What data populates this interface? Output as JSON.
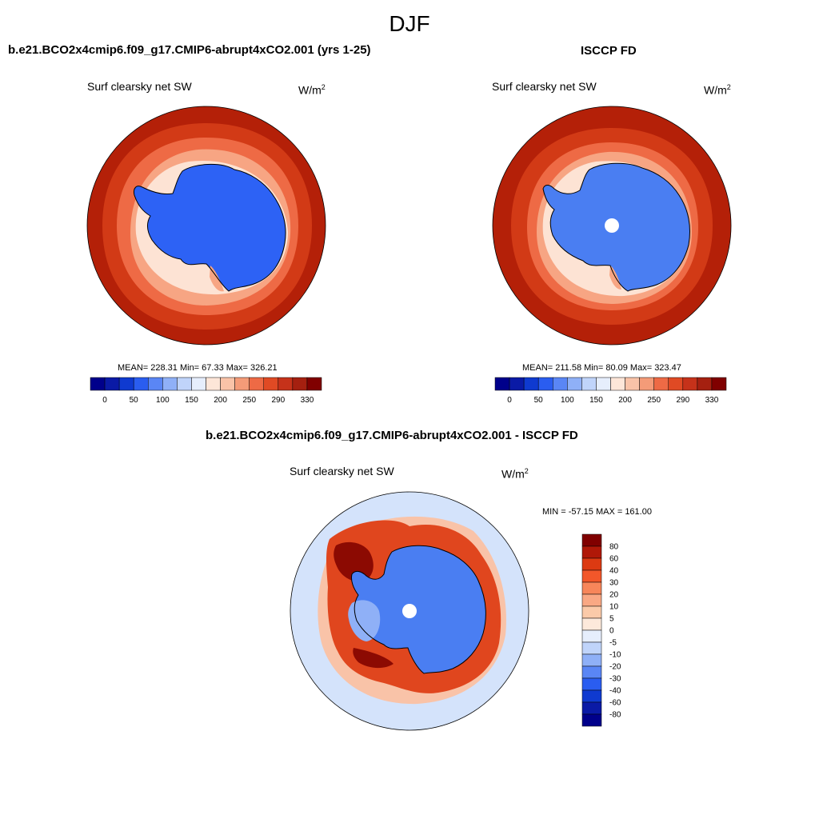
{
  "figure": {
    "season": "DJF"
  },
  "panels": [
    {
      "title": "b.e21.BCO2x4cmip6.f09_g17.CMIP6-abrupt4xCO2.001 (yrs 1-25)",
      "variable": "Surf clearsky net SW",
      "units": "W/m",
      "units_exp": "2",
      "stats": "MEAN= 228.31  Min=  67.33  Max= 326.21"
    },
    {
      "title": "ISCCP FD",
      "variable": "Surf clearsky net SW",
      "units": "W/m",
      "units_exp": "2",
      "stats": "MEAN= 211.58  Min=  80.09  Max= 323.47"
    },
    {
      "title": "b.e21.BCO2x4cmip6.f09_g17.CMIP6-abrupt4xCO2.001 - ISCCP FD",
      "variable": "Surf clearsky net SW",
      "units": "W/m",
      "units_exp": "2",
      "stats": "MIN = -57.15 MAX = 161.00"
    }
  ],
  "abs_colorbar": {
    "labels": [
      "0",
      "50",
      "100",
      "150",
      "200",
      "250",
      "290",
      "330"
    ],
    "colors": [
      "#00008b",
      "#0a1aa6",
      "#0f3ad0",
      "#2a5df0",
      "#5a86f5",
      "#8fb0f7",
      "#c0d4fa",
      "#e6eefc",
      "#fde6d8",
      "#f9c3a8",
      "#f49b78",
      "#ee6a45",
      "#e04a24",
      "#c6321a",
      "#a52010",
      "#800000"
    ]
  },
  "diff_colorbar": {
    "labels": [
      "80",
      "60",
      "40",
      "30",
      "20",
      "10",
      "5",
      "0",
      "-5",
      "-10",
      "-20",
      "-30",
      "-40",
      "-60",
      "-80"
    ],
    "colors": [
      "#800000",
      "#b01808",
      "#dc3a12",
      "#f2572a",
      "#f7865a",
      "#f9a884",
      "#fbcaa9",
      "#fde9db",
      "#e6eefc",
      "#c0d4fa",
      "#8fb0f7",
      "#5a86f5",
      "#2a5df0",
      "#0f3ad0",
      "#0a1aa6",
      "#00008b"
    ]
  },
  "map_colors": {
    "ocean_warm": "#b42008",
    "ring2": "#d23a16",
    "ring3": "#ee6a45",
    "ring4": "#f7a583",
    "ring5": "#fde3d4",
    "land_model": "#2d62f5",
    "land_obs": "#4a7ef2",
    "diff_background": "#d4e3fb",
    "diff_pale_red": "#f9c3a8",
    "diff_red": "#e0461e",
    "diff_dark_red": "#8c0a02",
    "diff_land": "#4a7ef2",
    "diff_land_light": "#8fb0f7",
    "pole_hole": "#ffffff"
  }
}
